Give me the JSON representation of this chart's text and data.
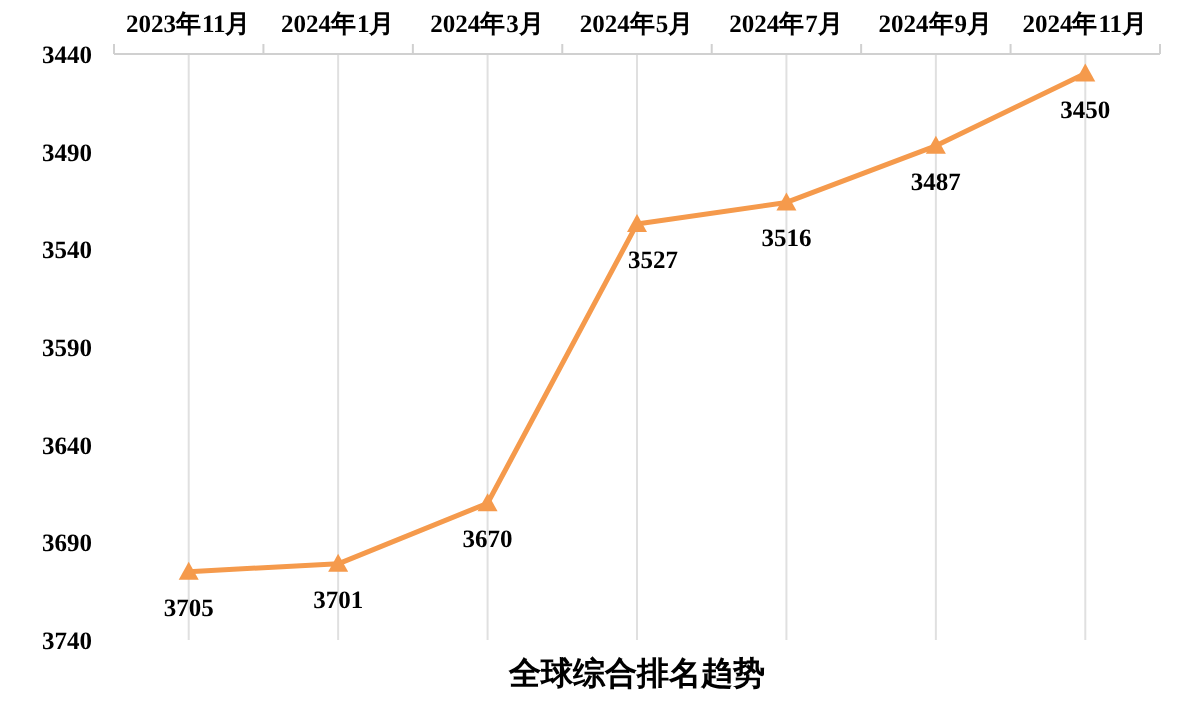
{
  "chart_data": {
    "type": "line",
    "title": "全球综合排名趋势",
    "categories": [
      "2023年11月",
      "2024年1月",
      "2024年3月",
      "2024年5月",
      "2024年7月",
      "2024年9月",
      "2024年11月"
    ],
    "series": [
      {
        "color": "#f59a4c",
        "values": [
          3705,
          3701,
          3670,
          3527,
          3516,
          3487,
          3450
        ]
      }
    ],
    "ylim": [
      3740,
      3440
    ],
    "yticks": [
      3440,
      3490,
      3540,
      3590,
      3640,
      3690,
      3740
    ],
    "marker": "triangle",
    "data_labels": true,
    "grid": "x"
  }
}
